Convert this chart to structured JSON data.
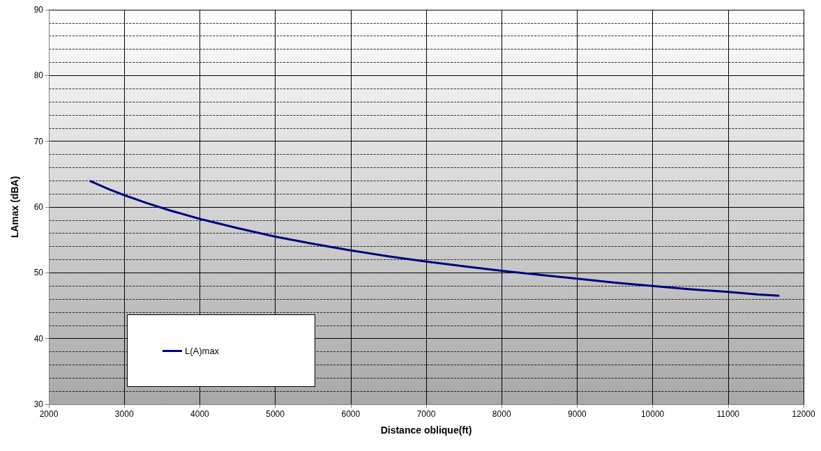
{
  "chart_data": {
    "type": "line",
    "xlabel": "Distance oblique(ft)",
    "ylabel": "LAmax (dBA)",
    "x": [
      2540,
      2800,
      3000,
      3300,
      3600,
      4000,
      4500,
      5000,
      5500,
      6000,
      6500,
      7000,
      7500,
      8000,
      8500,
      9000,
      9500,
      10000,
      10500,
      11000,
      11400,
      11680
    ],
    "series": [
      {
        "name": "L(A)max",
        "color": "#000080",
        "values": [
          64.0,
          62.7,
          61.8,
          60.6,
          59.5,
          58.2,
          56.8,
          55.5,
          54.4,
          53.4,
          52.5,
          51.7,
          51.0,
          50.3,
          49.7,
          49.1,
          48.5,
          48.0,
          47.5,
          47.1,
          46.7,
          46.5
        ]
      }
    ],
    "xlim": [
      2000,
      12000
    ],
    "xticks": [
      2000,
      3000,
      4000,
      5000,
      6000,
      7000,
      8000,
      9000,
      10000,
      11000,
      12000
    ],
    "ylim": [
      30,
      90
    ],
    "yticks": [
      30,
      40,
      50,
      60,
      70,
      80,
      90
    ],
    "grid": true,
    "legend": "bottom left",
    "marker": "none",
    "line_style": "solid"
  }
}
